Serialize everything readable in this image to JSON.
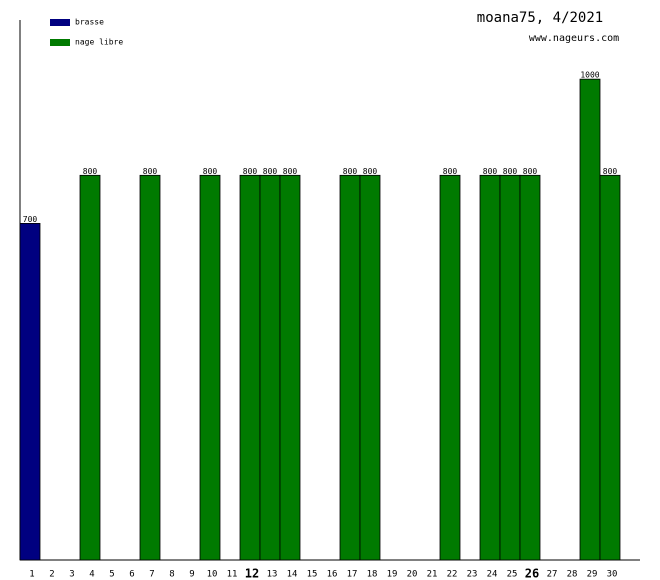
{
  "chart_data": {
    "type": "bar",
    "title": "moana75, 4/2021",
    "subtitle": "www.nageurs.com",
    "categories": [
      1,
      2,
      3,
      4,
      5,
      6,
      7,
      8,
      9,
      10,
      11,
      12,
      13,
      14,
      15,
      16,
      17,
      18,
      19,
      20,
      21,
      22,
      23,
      24,
      25,
      26,
      27,
      28,
      29,
      30
    ],
    "bold_categories": [
      12,
      26
    ],
    "series": [
      {
        "name": "brasse",
        "color": "#000080",
        "values": [
          700,
          null,
          null,
          null,
          null,
          null,
          null,
          null,
          null,
          null,
          null,
          null,
          null,
          null,
          null,
          null,
          null,
          null,
          null,
          null,
          null,
          null,
          null,
          null,
          null,
          null,
          null,
          null,
          null,
          null
        ]
      },
      {
        "name": "nage libre",
        "color": "#007a00",
        "values": [
          null,
          null,
          null,
          800,
          null,
          null,
          800,
          null,
          null,
          800,
          null,
          800,
          800,
          800,
          null,
          null,
          800,
          800,
          null,
          null,
          null,
          800,
          null,
          800,
          800,
          800,
          null,
          null,
          1000,
          800
        ]
      }
    ],
    "ylim": [
      0,
      1123
    ]
  }
}
